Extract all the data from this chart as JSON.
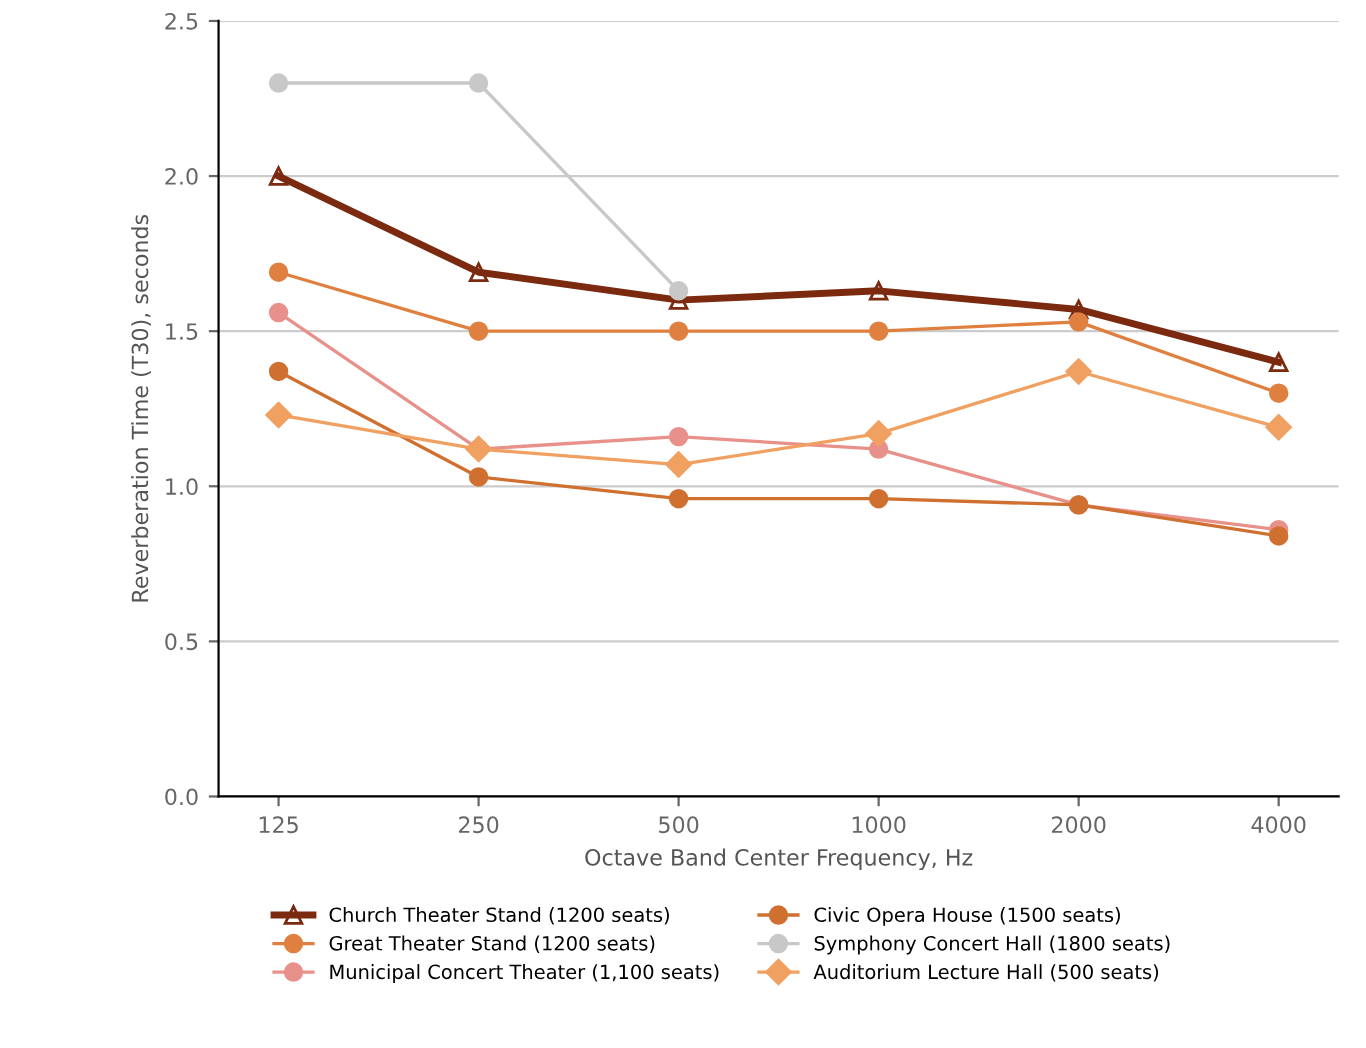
{
  "chart_data": {
    "type": "line",
    "xlabel": "Octave Band Center Frequency, Hz",
    "ylabel": "Reverberation Time (T30), seconds",
    "categories": [
      "125",
      "250",
      "500",
      "1000",
      "2000",
      "4000"
    ],
    "series": [
      {
        "name": "Church Theater Stand (1200 seats)",
        "color": "#7b2a10",
        "marker": "triangle",
        "values": [
          2.0,
          1.69,
          1.6,
          1.63,
          1.57,
          1.4
        ]
      },
      {
        "name": "Great Theater Stand (1200 seats)",
        "color": "#e08040",
        "marker": "circle",
        "values": [
          1.69,
          1.5,
          1.5,
          1.5,
          1.53,
          1.3
        ]
      },
      {
        "name": "Municipal Concert Theater (1,100 seats)",
        "color": "#e8908a",
        "marker": "circle",
        "values": [
          1.56,
          1.12,
          1.16,
          1.12,
          0.94,
          0.86
        ]
      },
      {
        "name": "Civic Opera House (1500 seats)",
        "color": "#d07030",
        "marker": "circle",
        "values": [
          1.37,
          1.03,
          0.96,
          0.96,
          0.94,
          0.84
        ]
      },
      {
        "name": "Symphony Concert Hall (1800 seats)",
        "color": "#c8c8c8",
        "marker": "circle",
        "values": [
          2.3,
          2.3,
          1.63,
          null,
          null,
          null
        ]
      },
      {
        "name": "Auditorium Lecture Hall (500 seats)",
        "color": "#f0a060",
        "marker": "diamond",
        "values": [
          1.23,
          1.12,
          1.07,
          1.17,
          1.37,
          1.19
        ]
      }
    ],
    "ylim": [
      0.0,
      2.5
    ],
    "yticks": [
      {
        "value": 0.0,
        "label": "0.0"
      },
      0.5,
      {
        "value": 1.0,
        "label": "1.0"
      },
      1.5,
      {
        "value": 2.0,
        "label": "2.0"
      },
      2.5
    ],
    "grid": "y",
    "legend": "bottom"
  }
}
